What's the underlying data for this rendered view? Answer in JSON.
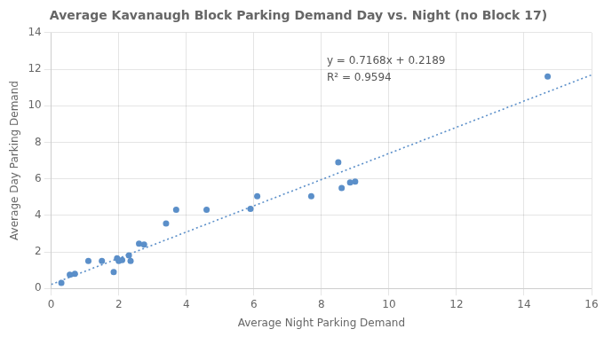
{
  "chart_data": {
    "type": "scatter",
    "title": "Average Kavanaugh Block Parking Demand Day vs. Night (no Block 17)",
    "x_label": "Average Night Parking Demand",
    "y_label": "Average Day Parking Demand",
    "series": [
      {
        "type": "scatter",
        "color": "#5B8FC9",
        "marker": "circle",
        "x": [
          0.3,
          0.55,
          0.7,
          1.1,
          1.5,
          1.85,
          1.95,
          2.0,
          2.1,
          2.3,
          2.35,
          2.6,
          2.75,
          3.4,
          3.7,
          4.6,
          5.9,
          6.1,
          7.7,
          8.5,
          8.6,
          8.85,
          9.0,
          14.7
        ],
        "values": [
          0.3,
          0.75,
          0.8,
          1.5,
          1.5,
          0.9,
          1.65,
          1.5,
          1.55,
          1.8,
          1.5,
          2.45,
          2.4,
          3.55,
          4.3,
          4.3,
          4.35,
          5.05,
          5.05,
          6.9,
          5.5,
          5.8,
          5.85,
          11.6
        ]
      },
      {
        "type": "line",
        "color": "#5B8FC9",
        "line_style": "dotted",
        "marker": "none",
        "x": [
          0,
          16
        ],
        "values": [
          0.2189,
          11.6877
        ]
      }
    ],
    "annotations": [
      "y = 0.7168x + 0.2189",
      "R² = 0.9594"
    ],
    "xlim": [
      0,
      16
    ],
    "xticks": [
      0,
      2,
      4,
      6,
      8,
      10,
      12,
      14,
      16
    ],
    "ylim": [
      0,
      14
    ],
    "yticks": [
      0,
      2,
      4,
      6,
      8,
      10,
      12,
      14
    ],
    "grid": true
  }
}
